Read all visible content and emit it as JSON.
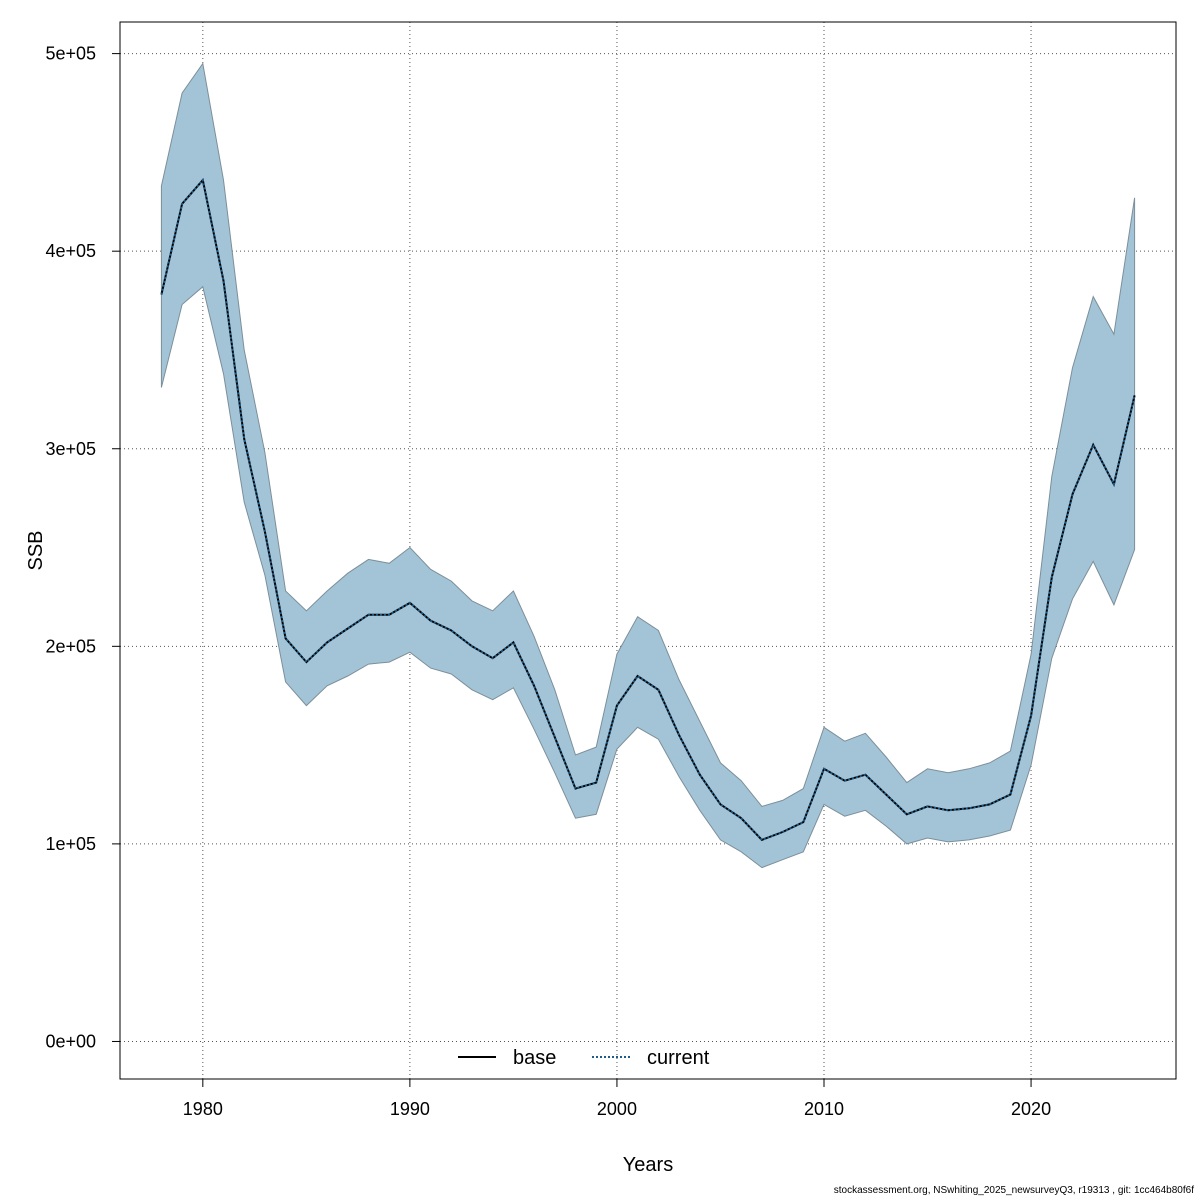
{
  "chart_data": {
    "type": "area",
    "xlabel": "Years",
    "ylabel": "SSB",
    "xlim": [
      1976,
      2027
    ],
    "ylim": [
      -19000,
      516000
    ],
    "xticks": [
      1980,
      1990,
      2000,
      2010,
      2020
    ],
    "yticks": [
      0,
      100000,
      200000,
      300000,
      400000,
      500000
    ],
    "ytick_labels": [
      "0e+00",
      "1e+05",
      "2e+05",
      "3e+05",
      "4e+05",
      "5e+05"
    ],
    "grid": true,
    "legend_position": "bottom",
    "x": [
      1978,
      1979,
      1980,
      1981,
      1982,
      1983,
      1984,
      1985,
      1986,
      1987,
      1988,
      1989,
      1990,
      1991,
      1992,
      1993,
      1994,
      1995,
      1996,
      1997,
      1998,
      1999,
      2000,
      2001,
      2002,
      2003,
      2004,
      2005,
      2006,
      2007,
      2008,
      2009,
      2010,
      2011,
      2012,
      2013,
      2014,
      2015,
      2016,
      2017,
      2018,
      2019,
      2020,
      2021,
      2022,
      2023,
      2024,
      2025
    ],
    "series": [
      {
        "name": "base",
        "color": "#000000",
        "line_style": "solid",
        "values": [
          378000,
          424000,
          436000,
          385000,
          305000,
          258000,
          204000,
          192000,
          202000,
          209000,
          216000,
          216000,
          222000,
          213000,
          208000,
          200000,
          194000,
          202000,
          180000,
          154000,
          128000,
          131000,
          170000,
          185000,
          178000,
          155000,
          135000,
          120000,
          113000,
          102000,
          106000,
          111000,
          138000,
          132000,
          135000,
          125000,
          115000,
          119000,
          117000,
          118000,
          120000,
          125000,
          165000,
          235000,
          277000,
          302000,
          282000,
          327000
        ]
      },
      {
        "name": "current",
        "color": "#1f5c8b",
        "line_style": "dotted",
        "values": [
          378000,
          424000,
          436000,
          385000,
          305000,
          258000,
          204000,
          192000,
          202000,
          209000,
          216000,
          216000,
          222000,
          213000,
          208000,
          200000,
          194000,
          202000,
          180000,
          154000,
          128000,
          131000,
          170000,
          185000,
          178000,
          155000,
          135000,
          120000,
          113000,
          102000,
          106000,
          111000,
          138000,
          132000,
          135000,
          125000,
          115000,
          119000,
          117000,
          118000,
          120000,
          125000,
          165000,
          235000,
          277000,
          302000,
          282000,
          327000
        ]
      }
    ],
    "band": {
      "color": "#a3c4d6",
      "lower": [
        331000,
        373000,
        382000,
        338000,
        273000,
        236000,
        182000,
        170000,
        180000,
        185000,
        191000,
        192000,
        197000,
        189000,
        186000,
        178000,
        173000,
        179000,
        158000,
        136000,
        113000,
        115000,
        148000,
        159000,
        153000,
        134000,
        117000,
        102000,
        96000,
        88000,
        92000,
        96000,
        120000,
        114000,
        117000,
        109000,
        100000,
        103000,
        101000,
        102000,
        104000,
        107000,
        140000,
        194000,
        224000,
        243000,
        221000,
        249000
      ],
      "upper": [
        433000,
        480000,
        495000,
        436000,
        350000,
        298000,
        228000,
        218000,
        228000,
        237000,
        244000,
        242000,
        250000,
        239000,
        233000,
        223000,
        218000,
        228000,
        205000,
        178000,
        145000,
        149000,
        196000,
        215000,
        208000,
        183000,
        162000,
        141000,
        132000,
        119000,
        122000,
        128000,
        159000,
        152000,
        156000,
        144000,
        131000,
        138000,
        136000,
        138000,
        141000,
        147000,
        196000,
        286000,
        341000,
        377000,
        358000,
        427000
      ]
    }
  },
  "footer": "stockassessment.org, NSwhiting_2025_newsurveyQ3, r19313 , git: 1cc464b80f6f"
}
